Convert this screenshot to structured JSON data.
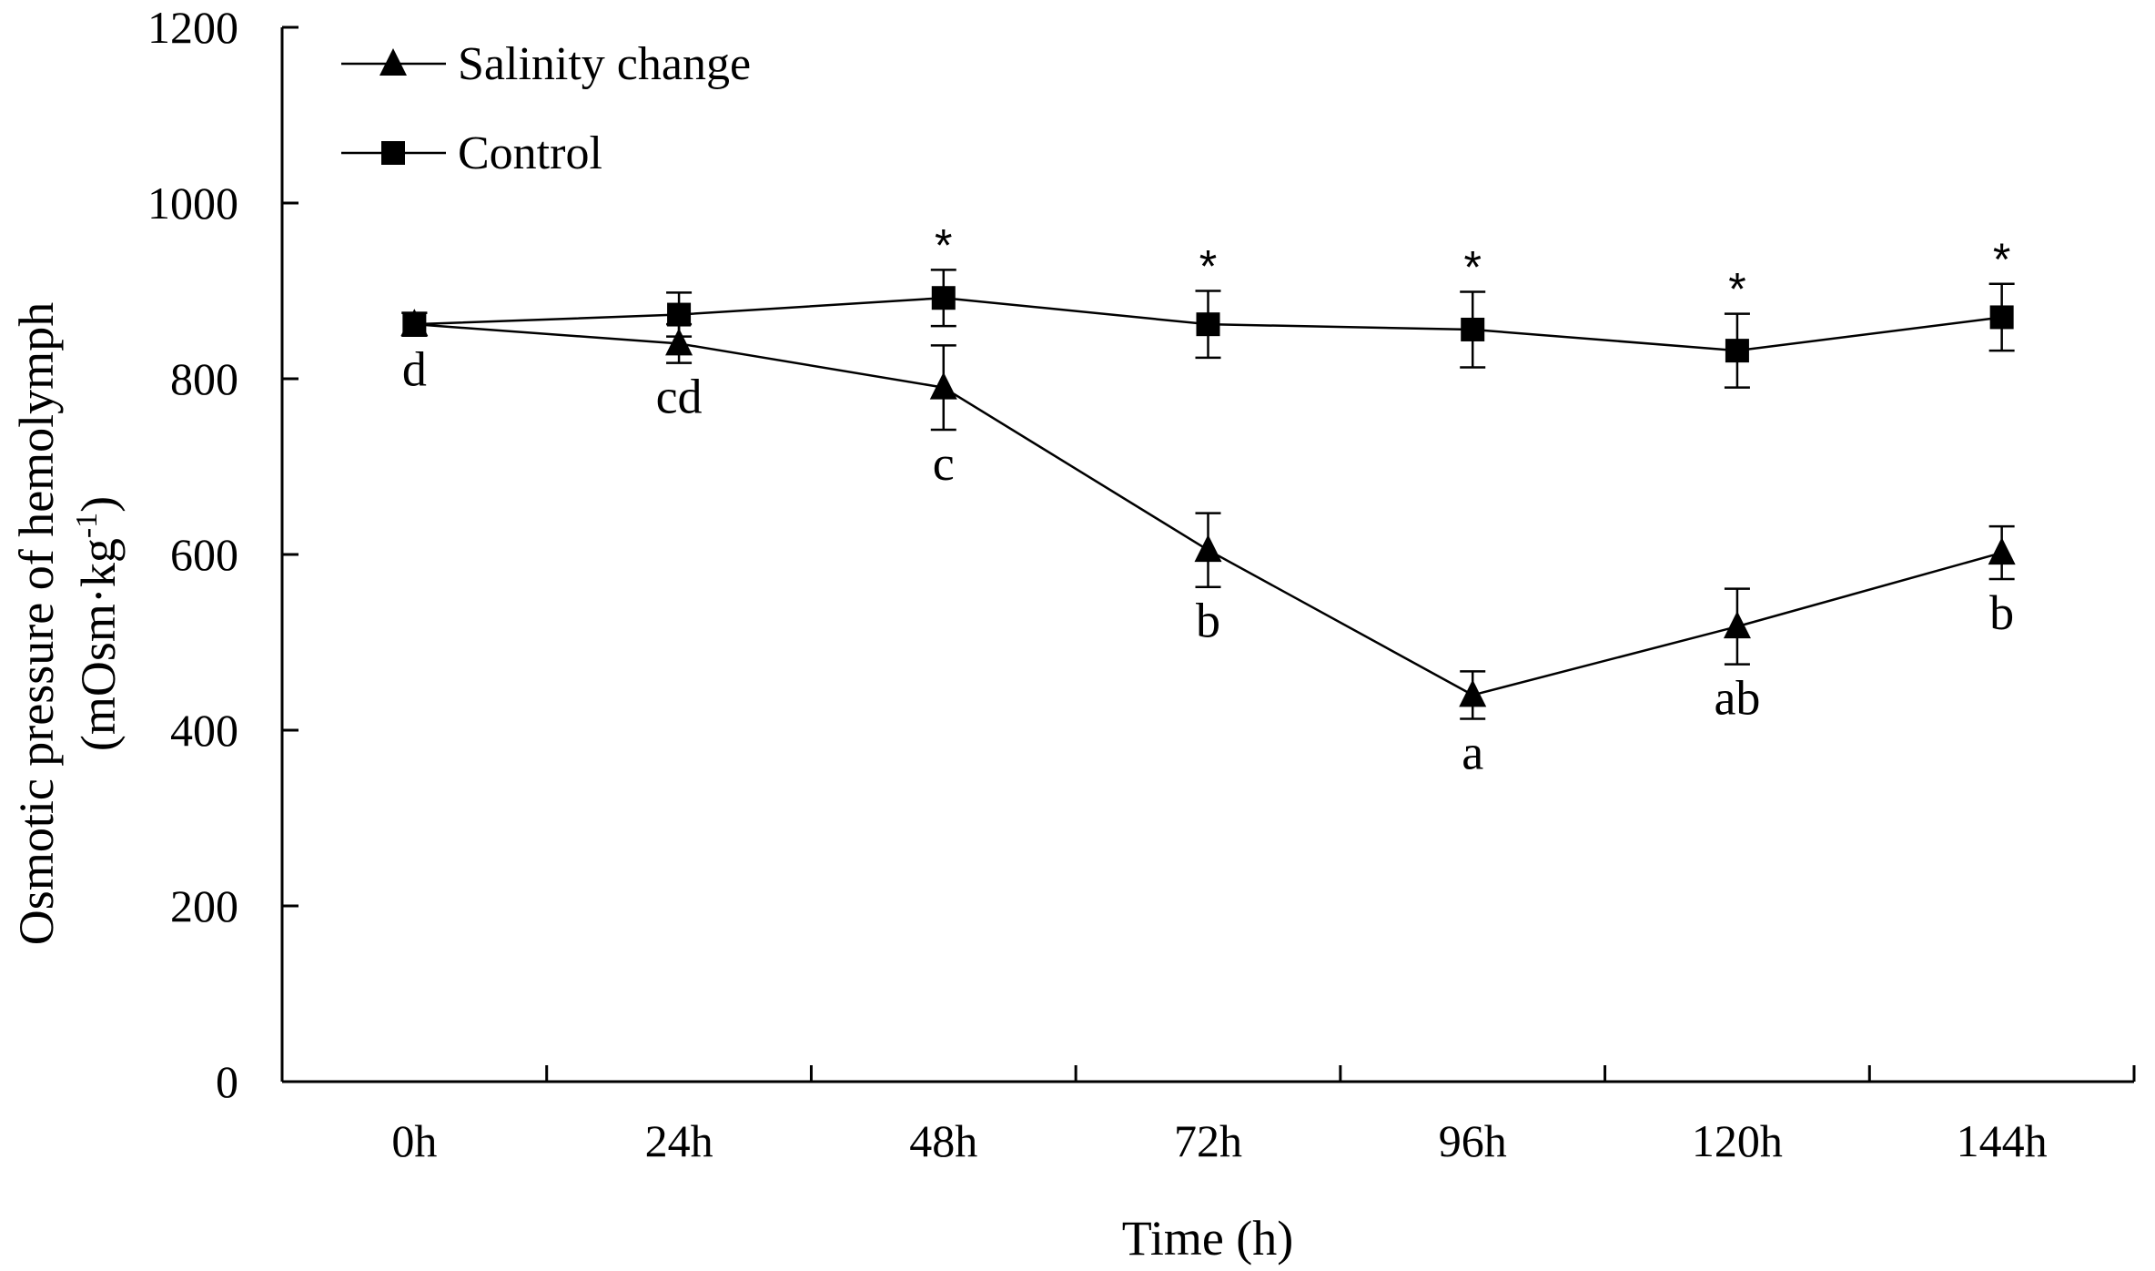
{
  "chart_data": {
    "type": "line",
    "categories": [
      "0h",
      "24h",
      "48h",
      "72h",
      "96h",
      "120h",
      "144h"
    ],
    "xlabel": "Time (h)",
    "ylabel_line1": "Osmotic pressure of  hemolymph",
    "ylabel_line2_prefix": "(mOsm·kg",
    "ylabel_superscript": "-1",
    "ylabel_line2_suffix": ")",
    "ylim": [
      0,
      1200
    ],
    "yticks": [
      0,
      200,
      400,
      600,
      800,
      1000,
      1200
    ],
    "legend_position": "top-left",
    "series": [
      {
        "name": "Salinity change",
        "marker": "triangle",
        "values": [
          862,
          840,
          790,
          605,
          440,
          518,
          602
        ],
        "errors": [
          13,
          22,
          48,
          42,
          27,
          43,
          30
        ],
        "labels": [
          "d",
          "cd",
          "c",
          "b",
          "a",
          "ab",
          "b"
        ]
      },
      {
        "name": "Control",
        "marker": "square",
        "values": [
          862,
          873,
          892,
          862,
          856,
          832,
          870
        ],
        "errors": [
          13,
          25,
          32,
          38,
          43,
          42,
          38
        ],
        "significance": [
          "",
          "",
          "*",
          "*",
          "*",
          "*",
          "*"
        ]
      }
    ],
    "colors": {
      "line": "#000000",
      "background": "#ffffff"
    }
  }
}
